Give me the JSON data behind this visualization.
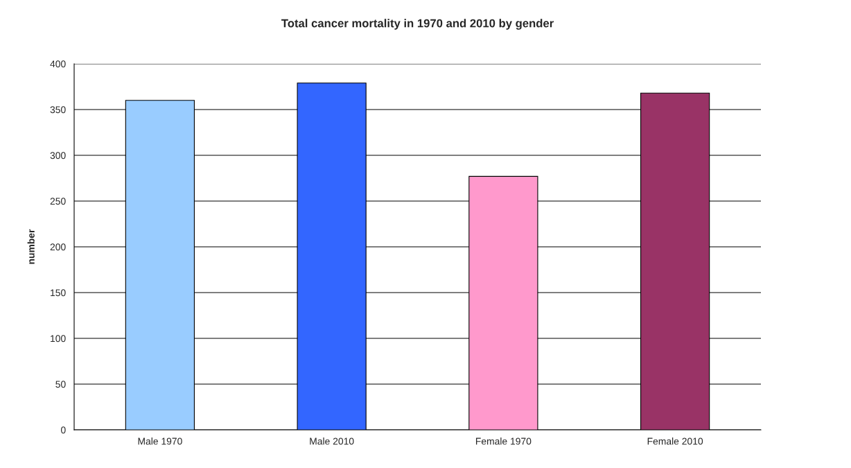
{
  "chart_data": {
    "type": "bar",
    "title": "Total cancer mortality in 1970 and 2010 by gender",
    "ylabel": "number",
    "categories": [
      "Male 1970",
      "Male 2010",
      "Female 1970",
      "Female 2010"
    ],
    "values": [
      360,
      379,
      277,
      368
    ],
    "colors": [
      "#99ccff",
      "#3366ff",
      "#ff99cc",
      "#993366"
    ],
    "ylim": [
      0,
      400
    ],
    "yticks": [
      0,
      50,
      100,
      150,
      200,
      250,
      300,
      350,
      400
    ],
    "grid": "y",
    "legend": false
  }
}
